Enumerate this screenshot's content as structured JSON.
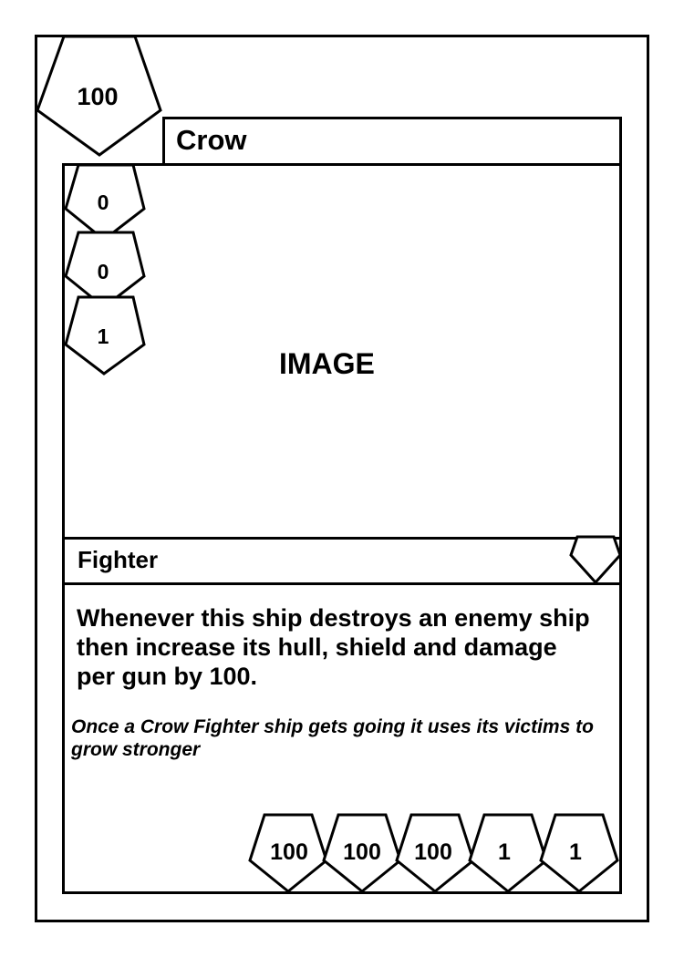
{
  "card": {
    "cost": "100",
    "name": "Crow",
    "image_placeholder": "IMAGE",
    "side_stats": [
      "0",
      "0",
      "1"
    ],
    "type_line": "Fighter",
    "ability_text": "Whenever this ship destroys an enemy ship then increase its hull, shield and damage per gun by 100.",
    "flavor_text": "Once a Crow Fighter ship gets going it uses its victims to grow stronger",
    "bottom_stats": [
      "100",
      "100",
      "100",
      "1",
      "1"
    ]
  },
  "colors": {
    "ink": "#000000",
    "paper": "#ffffff"
  }
}
